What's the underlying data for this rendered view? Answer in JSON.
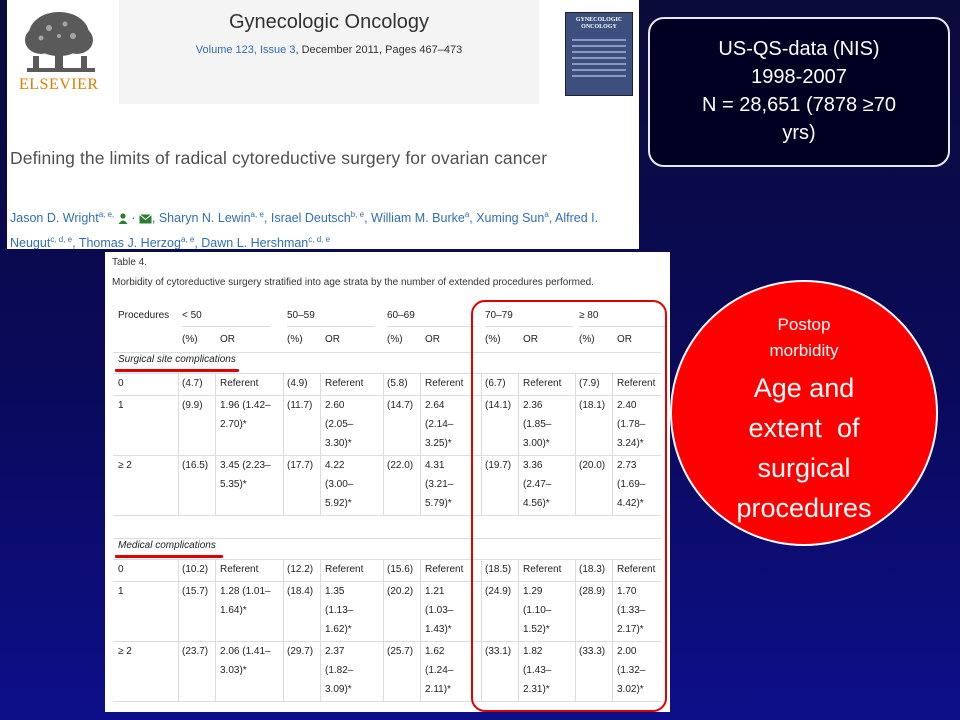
{
  "article": {
    "publisher": "ELSEVIER",
    "journal_title": "Gynecologic Oncology",
    "volume_issue": "Volume 123, Issue 3",
    "date_pages": ", December 2011, Pages 467–473",
    "cover_title": "GYNECOLOGIC ONCOLOGY",
    "title": "Defining the limits of radical cytoreductive surgery for ovarian cancer",
    "authors": [
      {
        "name": "Jason D. Wright",
        "sup": "a, e,"
      },
      {
        "name": "Sharyn N. Lewin",
        "sup": "a, e"
      },
      {
        "name": "Israel Deutsch",
        "sup": "b, e"
      },
      {
        "name": "William M. Burke",
        "sup": "a"
      },
      {
        "name": "Xuming Sun",
        "sup": "a"
      },
      {
        "name": "Alfred I. Neugut",
        "sup": "c, d, e"
      },
      {
        "name": "Thomas J. Herzog",
        "sup": "a, e"
      },
      {
        "name": "Dawn L. Hershman",
        "sup": "c, d, e"
      }
    ]
  },
  "data_box": {
    "lines": [
      "US-QS-data (NIS)",
      "1998-2007",
      "N = 28,651 (7878 ≥70",
      "yrs)"
    ]
  },
  "table": {
    "label": "Table 4.",
    "caption": "Morbidity of cytoreductive surgery stratified into age strata by the number of extended procedures performed.",
    "header_groups": [
      "Procedures",
      "< 50",
      "50–59",
      "60–69",
      "70–79",
      "≥ 80"
    ],
    "subheaders": [
      "(%)",
      "OR"
    ],
    "sections": [
      {
        "label": "Surgical site complications",
        "rows": [
          {
            "proc": "0",
            "cells": [
              {
                "pct": "(4.7)",
                "or": [
                  "Referent"
                ]
              },
              {
                "pct": "(4.9)",
                "or": [
                  "Referent"
                ]
              },
              {
                "pct": "(5.8)",
                "or": [
                  "Referent"
                ]
              },
              {
                "pct": "(6.7)",
                "or": [
                  "Referent"
                ]
              },
              {
                "pct": "(7.9)",
                "or": [
                  "Referent"
                ]
              }
            ]
          },
          {
            "proc": "1",
            "cells": [
              {
                "pct": "(9.9)",
                "or": [
                  "1.96 (1.42–",
                  "2.70)*"
                ]
              },
              {
                "pct": "(11.7)",
                "or": [
                  "2.60",
                  "(2.05–",
                  "3.30)*"
                ]
              },
              {
                "pct": "(14.7)",
                "or": [
                  "2.64",
                  "(2.14–",
                  "3.25)*"
                ]
              },
              {
                "pct": "(14.1)",
                "or": [
                  "2.36",
                  "(1.85–",
                  "3.00)*"
                ]
              },
              {
                "pct": "(18.1)",
                "or": [
                  "2.40",
                  "(1.78–",
                  "3.24)*"
                ]
              }
            ]
          },
          {
            "proc": "≥ 2",
            "cells": [
              {
                "pct": "(16.5)",
                "or": [
                  "3.45 (2.23–",
                  "5.35)*"
                ]
              },
              {
                "pct": "(17.7)",
                "or": [
                  "4.22",
                  "(3.00–",
                  "5.92)*"
                ]
              },
              {
                "pct": "(22.0)",
                "or": [
                  "4.31",
                  "(3.21–",
                  "5.79)*"
                ]
              },
              {
                "pct": "(19.7)",
                "or": [
                  "3.36",
                  "(2.47–",
                  "4.56)*"
                ]
              },
              {
                "pct": "(20.0)",
                "or": [
                  "2.73",
                  "(1.69–",
                  "4.42)*"
                ]
              }
            ]
          }
        ]
      },
      {
        "label": "Medical complications",
        "rows": [
          {
            "proc": "0",
            "cells": [
              {
                "pct": "(10.2)",
                "or": [
                  "Referent"
                ]
              },
              {
                "pct": "(12.2)",
                "or": [
                  "Referent"
                ]
              },
              {
                "pct": "(15.6)",
                "or": [
                  "Referent"
                ]
              },
              {
                "pct": "(18.5)",
                "or": [
                  "Referent"
                ]
              },
              {
                "pct": "(18.3)",
                "or": [
                  "Referent"
                ]
              }
            ]
          },
          {
            "proc": "1",
            "cells": [
              {
                "pct": "(15.7)",
                "or": [
                  "1.28 (1.01–",
                  "1.64)*"
                ]
              },
              {
                "pct": "(18.4)",
                "or": [
                  "1.35",
                  "(1.13–",
                  "1.62)*"
                ]
              },
              {
                "pct": "(20.2)",
                "or": [
                  "1.21",
                  "(1.03–",
                  "1.43)*"
                ]
              },
              {
                "pct": "(24.9)",
                "or": [
                  "1.29",
                  "(1.10–",
                  "1.52)*"
                ]
              },
              {
                "pct": "(28.9)",
                "or": [
                  "1.70",
                  "(1.33–",
                  "2.17)*"
                ]
              }
            ]
          },
          {
            "proc": "≥ 2",
            "cells": [
              {
                "pct": "(23.7)",
                "or": [
                  "2.06 (1.41–",
                  "3.03)*"
                ]
              },
              {
                "pct": "(29.7)",
                "or": [
                  "2.37",
                  "(1.82–",
                  "3.09)*"
                ]
              },
              {
                "pct": "(25.7)",
                "or": [
                  "1.62",
                  "(1.24–",
                  "2.11)*"
                ]
              },
              {
                "pct": "(33.1)",
                "or": [
                  "1.82",
                  "(1.43–",
                  "2.31)*"
                ]
              },
              {
                "pct": "(33.3)",
                "or": [
                  "2.00",
                  "(1.32–",
                  "3.02)*"
                ]
              }
            ]
          }
        ]
      }
    ]
  },
  "callout": {
    "small_lines": [
      "Postop",
      "morbidity"
    ],
    "big_lines": [
      "Age and",
      "extent  of",
      "surgical",
      "procedures"
    ]
  },
  "colors": {
    "background": "#0a0a5c",
    "highlight": "#e00000",
    "circle": "#ff0000",
    "link": "#2f6fb5",
    "elsevier_orange": "#e07b00"
  }
}
